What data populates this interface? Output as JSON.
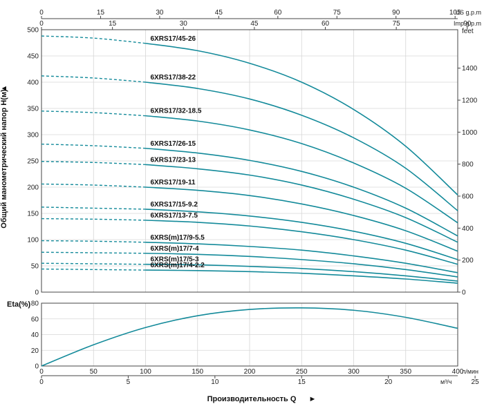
{
  "chart_data": [
    {
      "type": "line",
      "title": "",
      "ylabel": "Общий манометрический напор Н(м)",
      "xlabel": "Производительность Q",
      "xlim": [
        0,
        400
      ],
      "ylim": [
        0,
        500
      ],
      "x_unit": "л/мин",
      "y_ticks": [
        0,
        50,
        100,
        150,
        200,
        250,
        300,
        350,
        400,
        450,
        500
      ],
      "feet_axis": {
        "label": "feet",
        "ticks": [
          0,
          200,
          400,
          600,
          800,
          1000,
          1200,
          1400
        ]
      },
      "us_gpm_axis": {
        "label": "US g.p.m",
        "ticks": [
          0,
          15,
          30,
          45,
          60,
          75,
          90,
          105
        ]
      },
      "imp_gpm_axis": {
        "label": "Imp g.p.m",
        "ticks": [
          0,
          15,
          30,
          45,
          60,
          75,
          90
        ]
      },
      "dashed_until_x": 100,
      "series": [
        {
          "name": "6XRS17/45-26",
          "x": [
            0,
            50,
            100,
            150,
            200,
            250,
            300,
            350,
            400
          ],
          "y": [
            488,
            484,
            474,
            460,
            436,
            400,
            348,
            278,
            185
          ]
        },
        {
          "name": "6XRS17/38-22",
          "x": [
            0,
            50,
            100,
            150,
            200,
            250,
            300,
            350,
            400
          ],
          "y": [
            412,
            408,
            400,
            388,
            368,
            337,
            294,
            236,
            155
          ]
        },
        {
          "name": "6XRS17/32-18.5",
          "x": [
            0,
            50,
            100,
            150,
            200,
            250,
            300,
            350,
            400
          ],
          "y": [
            345,
            342,
            336,
            326,
            309,
            283,
            246,
            198,
            132
          ]
        },
        {
          "name": "6XRS17/26-15",
          "x": [
            0,
            50,
            100,
            150,
            200,
            250,
            300,
            350,
            400
          ],
          "y": [
            282,
            279,
            274,
            265,
            251,
            230,
            200,
            160,
            107
          ]
        },
        {
          "name": "6XRS17/23-13",
          "x": [
            0,
            50,
            100,
            150,
            200,
            250,
            300,
            350,
            400
          ],
          "y": [
            249,
            247,
            243,
            235,
            223,
            204,
            177,
            142,
            95
          ]
        },
        {
          "name": "6XRS17/19-11",
          "x": [
            0,
            50,
            100,
            150,
            200,
            250,
            300,
            350,
            400
          ],
          "y": [
            206,
            204,
            200,
            194,
            184,
            168,
            146,
            117,
            78
          ]
        },
        {
          "name": "6XRS17/15-9.2",
          "x": [
            0,
            50,
            100,
            150,
            200,
            250,
            300,
            350,
            400
          ],
          "y": [
            162,
            160,
            158,
            153,
            145,
            133,
            116,
            93,
            62
          ]
        },
        {
          "name": "6XRS17/13-7.5",
          "x": [
            0,
            50,
            100,
            150,
            200,
            250,
            300,
            350,
            400
          ],
          "y": [
            140,
            139,
            137,
            133,
            126,
            115,
            100,
            80,
            53
          ]
        },
        {
          "name": "6XRS(m)17/9-5.5",
          "x": [
            0,
            50,
            100,
            150,
            200,
            250,
            300,
            350,
            400
          ],
          "y": [
            98,
            97,
            95,
            92,
            87,
            80,
            69,
            55,
            37
          ]
        },
        {
          "name": "6XRS(m)17/7-4",
          "x": [
            0,
            50,
            100,
            150,
            200,
            250,
            300,
            350,
            400
          ],
          "y": [
            76,
            75,
            74,
            72,
            68,
            62,
            54,
            43,
            29
          ]
        },
        {
          "name": "6XRS(m)17/5-3",
          "x": [
            0,
            50,
            100,
            150,
            200,
            250,
            300,
            350,
            400
          ],
          "y": [
            55,
            54,
            53,
            52,
            49,
            45,
            39,
            31,
            21
          ]
        },
        {
          "name": "6XRS(m)17/4-2.2",
          "x": [
            0,
            50,
            100,
            150,
            200,
            250,
            300,
            350,
            400
          ],
          "y": [
            44,
            43,
            42,
            41,
            39,
            36,
            31,
            25,
            17
          ]
        }
      ]
    },
    {
      "type": "line",
      "title": "",
      "ylabel": "Eta(%)",
      "xlabel": "Производительность Q",
      "xlim": [
        0,
        400
      ],
      "ylim": [
        0,
        80
      ],
      "y_ticks": [
        0,
        20,
        40,
        60,
        80
      ],
      "x_ticks_lmin": [
        0,
        50,
        100,
        150,
        200,
        250,
        300,
        350,
        400
      ],
      "x_unit_lmin": "л/мин",
      "x_ticks_m3h": [
        0,
        5,
        10,
        15,
        20,
        25
      ],
      "x_unit_m3h": "м³/ч",
      "series": [
        {
          "name": "Eta",
          "x": [
            0,
            50,
            100,
            150,
            200,
            250,
            300,
            350,
            400
          ],
          "y": [
            0,
            27,
            49,
            64,
            72,
            74,
            71,
            62,
            48
          ]
        }
      ]
    }
  ],
  "colors": {
    "curve": "#138a9a",
    "grid": "#d6d6d6",
    "text": "#222222"
  }
}
